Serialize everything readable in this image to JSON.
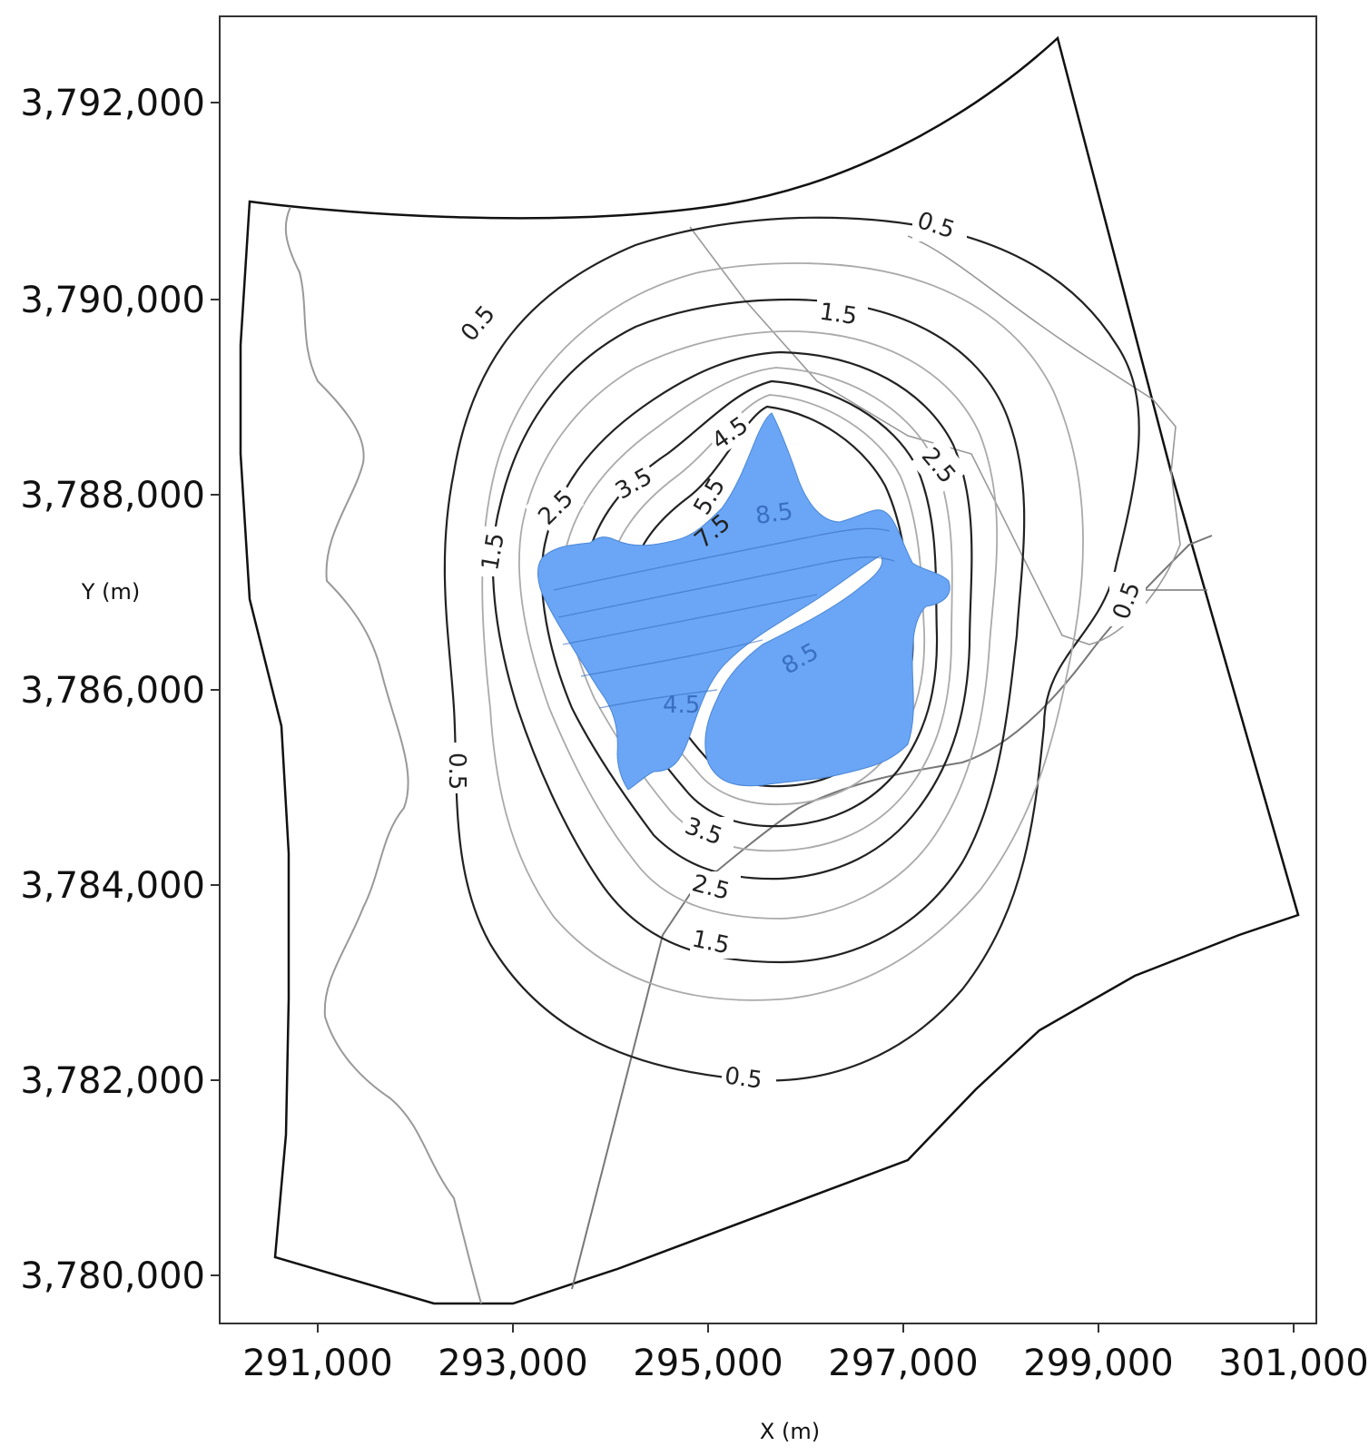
{
  "map": {
    "axes": {
      "xlabel": "X (m)",
      "ylabel": "Y (m)",
      "x_ticks": [
        "291,000",
        "293,000",
        "295,000",
        "297,000",
        "299,000",
        "301,000"
      ],
      "y_ticks": [
        "3,792,000",
        "3,790,000",
        "3,788,000",
        "3,786,000",
        "3,784,000",
        "3,782,000",
        "3,780,000"
      ]
    },
    "contour_labels": [
      "0.5",
      "0.5",
      "0.5",
      "0.5",
      "0.5",
      "1.5",
      "1.5",
      "1.5",
      "2.5",
      "2.5",
      "2.5",
      "3.5",
      "3.5",
      "4.5",
      "5.5",
      "7.5"
    ],
    "inner_labels": [
      "8.5",
      "4.5",
      "8.5"
    ],
    "colors": {
      "lake": "#6aa6f5",
      "contour_dark": "#222222",
      "contour_light": "#aaaaaa",
      "boundary": "#111111"
    }
  }
}
